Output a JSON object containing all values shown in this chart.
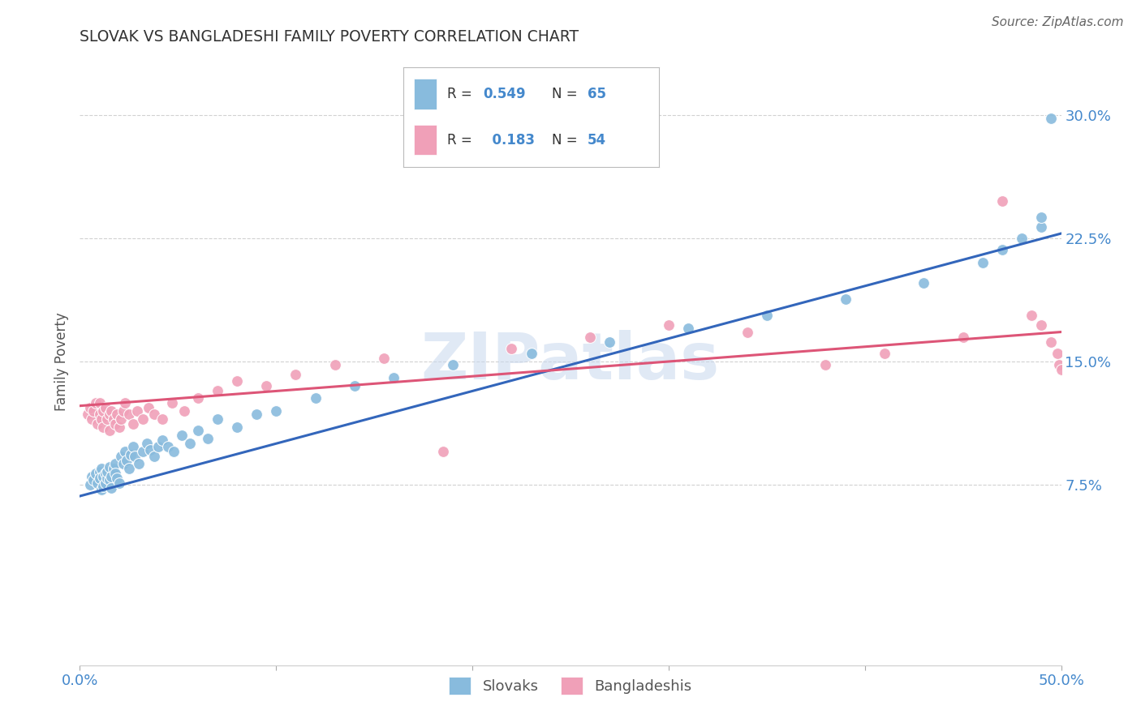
{
  "title": "SLOVAK VS BANGLADESHI FAMILY POVERTY CORRELATION CHART",
  "source": "Source: ZipAtlas.com",
  "ylabel": "Family Poverty",
  "xlim": [
    0.0,
    0.5
  ],
  "ylim": [
    -0.035,
    0.335
  ],
  "xticks": [
    0.0,
    0.1,
    0.2,
    0.3,
    0.4,
    0.5
  ],
  "xticklabels": [
    "0.0%",
    "",
    "",
    "",
    "",
    "50.0%"
  ],
  "yticks": [
    0.075,
    0.15,
    0.225,
    0.3
  ],
  "yticklabels": [
    "7.5%",
    "15.0%",
    "22.5%",
    "30.0%"
  ],
  "slovak_R": 0.549,
  "slovak_N": 65,
  "bangladeshi_R": 0.183,
  "bangladeshi_N": 54,
  "slovak_color": "#88bbdd",
  "bangladeshi_color": "#f0a0b8",
  "slovak_line_color": "#3366bb",
  "bangladeshi_line_color": "#dd5577",
  "title_color": "#333333",
  "axis_label_color": "#555555",
  "tick_color": "#4488cc",
  "grid_color": "#cccccc",
  "watermark": "ZIPatlas",
  "watermark_color": "#c8d8ee",
  "slovak_trendline_x": [
    0.0,
    0.5
  ],
  "slovak_trendline_y": [
    0.068,
    0.228
  ],
  "bangladeshi_trendline_x": [
    0.0,
    0.5
  ],
  "bangladeshi_trendline_y": [
    0.123,
    0.168
  ],
  "slovak_x": [
    0.005,
    0.006,
    0.007,
    0.008,
    0.009,
    0.01,
    0.01,
    0.011,
    0.011,
    0.012,
    0.012,
    0.013,
    0.013,
    0.014,
    0.014,
    0.015,
    0.015,
    0.016,
    0.016,
    0.017,
    0.018,
    0.018,
    0.019,
    0.02,
    0.021,
    0.022,
    0.023,
    0.024,
    0.025,
    0.026,
    0.027,
    0.028,
    0.03,
    0.032,
    0.034,
    0.036,
    0.038,
    0.04,
    0.042,
    0.045,
    0.048,
    0.052,
    0.056,
    0.06,
    0.065,
    0.07,
    0.08,
    0.09,
    0.1,
    0.12,
    0.14,
    0.16,
    0.19,
    0.23,
    0.27,
    0.31,
    0.35,
    0.39,
    0.43,
    0.46,
    0.47,
    0.48,
    0.49,
    0.49,
    0.495
  ],
  "slovak_y": [
    0.075,
    0.08,
    0.078,
    0.082,
    0.076,
    0.083,
    0.079,
    0.085,
    0.072,
    0.08,
    0.074,
    0.082,
    0.076,
    0.079,
    0.083,
    0.078,
    0.086,
    0.08,
    0.073,
    0.085,
    0.088,
    0.082,
    0.079,
    0.076,
    0.092,
    0.088,
    0.095,
    0.09,
    0.085,
    0.093,
    0.098,
    0.092,
    0.088,
    0.095,
    0.1,
    0.096,
    0.092,
    0.098,
    0.102,
    0.098,
    0.095,
    0.105,
    0.1,
    0.108,
    0.103,
    0.115,
    0.11,
    0.118,
    0.12,
    0.128,
    0.135,
    0.14,
    0.148,
    0.155,
    0.162,
    0.17,
    0.178,
    0.188,
    0.198,
    0.21,
    0.218,
    0.225,
    0.232,
    0.238,
    0.298
  ],
  "bangladeshi_x": [
    0.004,
    0.005,
    0.006,
    0.007,
    0.008,
    0.009,
    0.01,
    0.01,
    0.011,
    0.012,
    0.012,
    0.013,
    0.014,
    0.015,
    0.015,
    0.016,
    0.017,
    0.018,
    0.019,
    0.02,
    0.021,
    0.022,
    0.023,
    0.025,
    0.027,
    0.029,
    0.032,
    0.035,
    0.038,
    0.042,
    0.047,
    0.053,
    0.06,
    0.07,
    0.08,
    0.095,
    0.11,
    0.13,
    0.155,
    0.185,
    0.22,
    0.26,
    0.3,
    0.34,
    0.38,
    0.41,
    0.45,
    0.47,
    0.485,
    0.49,
    0.495,
    0.498,
    0.499,
    0.5
  ],
  "bangladeshi_y": [
    0.118,
    0.122,
    0.115,
    0.12,
    0.125,
    0.112,
    0.118,
    0.125,
    0.115,
    0.12,
    0.11,
    0.122,
    0.115,
    0.118,
    0.108,
    0.12,
    0.115,
    0.112,
    0.118,
    0.11,
    0.115,
    0.12,
    0.125,
    0.118,
    0.112,
    0.12,
    0.115,
    0.122,
    0.118,
    0.115,
    0.125,
    0.12,
    0.128,
    0.132,
    0.138,
    0.135,
    0.142,
    0.148,
    0.152,
    0.095,
    0.158,
    0.165,
    0.172,
    0.168,
    0.148,
    0.155,
    0.165,
    0.248,
    0.178,
    0.172,
    0.162,
    0.155,
    0.148,
    0.145
  ]
}
